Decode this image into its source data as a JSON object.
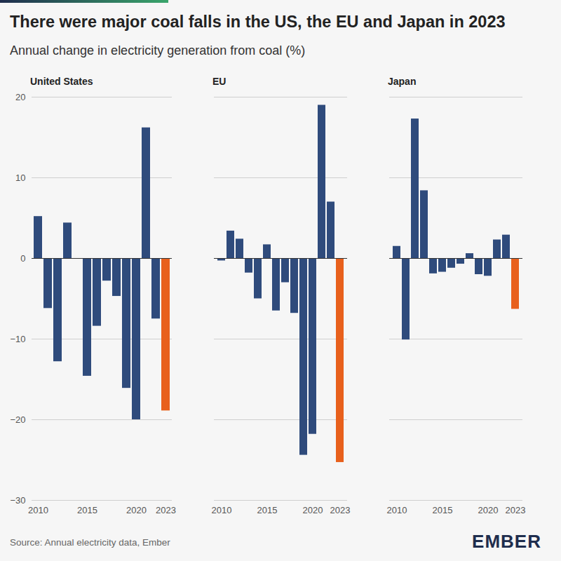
{
  "chart_data": {
    "type": "bar",
    "title": "There were major coal falls in the US, the EU and Japan in 2023",
    "subtitle": "Annual change in electricity generation from coal (%)",
    "caption": "Source: Annual electricity data, Ember",
    "logo": "EMBER",
    "x": [
      2010,
      2011,
      2012,
      2013,
      2014,
      2015,
      2016,
      2017,
      2018,
      2019,
      2020,
      2021,
      2022,
      2023
    ],
    "xticks": [
      2010,
      2015,
      2020,
      2023
    ],
    "ylim": [
      -30,
      20
    ],
    "yticks": [
      -30,
      -20,
      -10,
      0,
      10,
      20
    ],
    "grid": true,
    "series": [
      {
        "name": "United States",
        "values": [
          5.2,
          -6.2,
          -12.8,
          4.4,
          0,
          -14.6,
          -8.4,
          -2.8,
          -4.7,
          -16.1,
          -20.0,
          16.2,
          -7.5,
          -18.9
        ],
        "colors": [
          "#2f4b7c",
          "#2f4b7c",
          "#2f4b7c",
          "#2f4b7c",
          "#2f4b7c",
          "#2f4b7c",
          "#2f4b7c",
          "#2f4b7c",
          "#2f4b7c",
          "#2f4b7c",
          "#2f4b7c",
          "#2f4b7c",
          "#2f4b7c",
          "#e8601c"
        ]
      },
      {
        "name": "EU",
        "values": [
          -0.3,
          3.4,
          2.4,
          -1.8,
          -5.0,
          1.7,
          -6.5,
          -3.0,
          -6.8,
          -24.4,
          -21.8,
          19.0,
          7.0,
          -25.3
        ],
        "colors": [
          "#2f4b7c",
          "#2f4b7c",
          "#2f4b7c",
          "#2f4b7c",
          "#2f4b7c",
          "#2f4b7c",
          "#2f4b7c",
          "#2f4b7c",
          "#2f4b7c",
          "#2f4b7c",
          "#2f4b7c",
          "#2f4b7c",
          "#2f4b7c",
          "#e8601c"
        ]
      },
      {
        "name": "Japan",
        "values": [
          1.5,
          -10.1,
          17.3,
          8.4,
          -1.9,
          -1.7,
          -1.2,
          -0.7,
          0.6,
          -2.0,
          -2.2,
          2.3,
          2.9,
          -6.3
        ],
        "colors": [
          "#2f4b7c",
          "#2f4b7c",
          "#2f4b7c",
          "#2f4b7c",
          "#2f4b7c",
          "#2f4b7c",
          "#2f4b7c",
          "#2f4b7c",
          "#2f4b7c",
          "#2f4b7c",
          "#2f4b7c",
          "#2f4b7c",
          "#2f4b7c",
          "#e8601c"
        ]
      }
    ]
  }
}
